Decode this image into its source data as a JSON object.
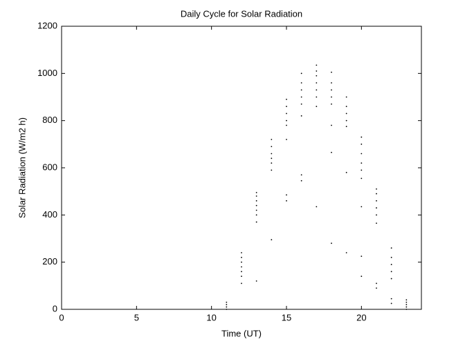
{
  "chart_data": {
    "type": "scatter",
    "title": "Daily Cycle for Solar Radiation",
    "x_label": "Time (UT)",
    "y_label": "Solar Radiation (W/m2 h)",
    "xlim": [
      0,
      24
    ],
    "xticks": [
      0,
      5,
      10,
      15,
      20
    ],
    "ylim": [
      0,
      1200
    ],
    "yticks": [
      0,
      200,
      400,
      600,
      800,
      1000,
      1200
    ],
    "grid": false,
    "color": "#000000",
    "x": [
      11,
      11,
      11,
      11,
      12,
      12,
      12,
      12,
      12,
      12,
      12,
      13,
      13,
      13,
      13,
      13,
      13,
      13,
      13,
      14,
      14,
      14,
      14,
      14,
      14,
      14,
      15,
      15,
      15,
      15,
      15,
      15,
      15,
      15,
      16,
      16,
      16,
      16,
      16,
      16,
      16,
      16,
      17,
      17,
      17,
      17,
      17,
      17,
      17,
      17,
      18,
      18,
      18,
      18,
      18,
      18,
      18,
      18,
      19,
      19,
      19,
      19,
      19,
      19,
      19,
      20,
      20,
      20,
      20,
      20,
      20,
      20,
      20,
      20,
      21,
      21,
      21,
      21,
      21,
      21,
      21,
      21,
      22,
      22,
      22,
      22,
      22,
      22,
      22,
      23,
      23,
      23,
      23,
      23
    ],
    "y": [
      0,
      10,
      20,
      30,
      110,
      140,
      160,
      180,
      200,
      220,
      240,
      120,
      370,
      400,
      420,
      440,
      460,
      480,
      495,
      295,
      590,
      620,
      640,
      660,
      690,
      720,
      460,
      485,
      720,
      780,
      800,
      830,
      860,
      890,
      545,
      570,
      820,
      870,
      900,
      930,
      960,
      1000,
      435,
      860,
      900,
      930,
      960,
      990,
      1010,
      1035,
      280,
      665,
      780,
      870,
      900,
      930,
      960,
      1005,
      240,
      580,
      775,
      800,
      830,
      860,
      900,
      140,
      225,
      435,
      555,
      590,
      620,
      660,
      700,
      730,
      90,
      110,
      365,
      400,
      430,
      460,
      490,
      510,
      25,
      45,
      130,
      160,
      190,
      220,
      260,
      0,
      10,
      20,
      30,
      40
    ]
  }
}
